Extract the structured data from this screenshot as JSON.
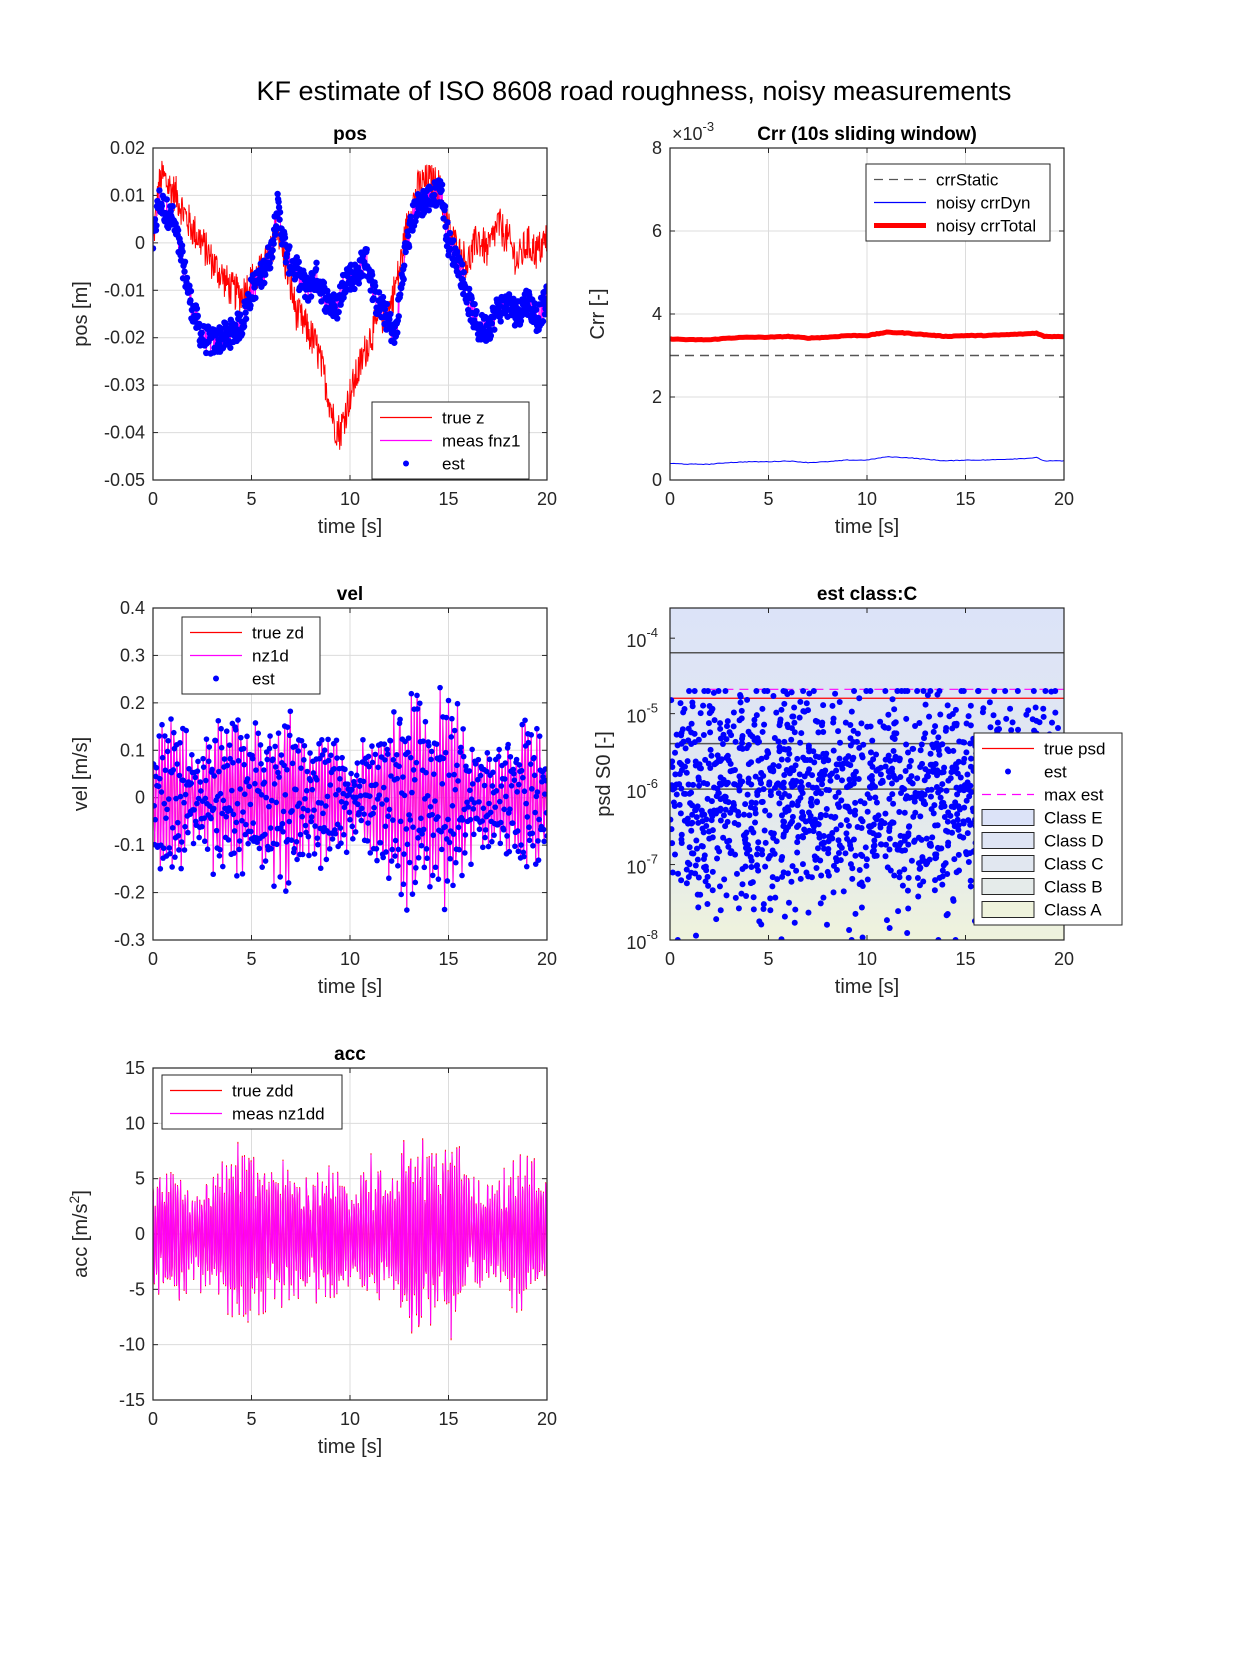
{
  "figure_title": "KF estimate of ISO 8608 road roughness, noisy measurements",
  "chart_data": [
    {
      "id": "pos",
      "type": "line",
      "title": "pos",
      "xlabel": "time [s]",
      "ylabel": "pos [m]",
      "xlim": [
        0,
        20
      ],
      "ylim": [
        -0.05,
        0.02
      ],
      "xticks": [
        "0",
        "5",
        "10",
        "15",
        "20"
      ],
      "yticks": [
        "-0.05",
        "-0.04",
        "-0.03",
        "-0.02",
        "-0.01",
        "0",
        "0.01",
        "0.02"
      ],
      "ytick_values": [
        -0.05,
        -0.04,
        -0.03,
        -0.02,
        -0.01,
        0,
        0.01,
        0.02
      ],
      "grid": true,
      "legend_position": "bottom-right",
      "series": [
        {
          "name": "true z",
          "style": "line",
          "color": "#ff0000",
          "x": [
            0,
            0.3,
            0.5,
            0.8,
            1.2,
            1.6,
            2.0,
            2.5,
            3.0,
            3.5,
            4.0,
            4.5,
            5.0,
            5.5,
            6.0,
            6.3,
            6.8,
            7.3,
            7.8,
            8.3,
            8.8,
            9.2,
            9.5,
            10.0,
            10.5,
            11.0,
            11.5,
            12.0,
            12.5,
            13.0,
            13.5,
            14.0,
            14.5,
            15.0,
            15.5,
            16.0,
            16.5,
            17.0,
            17.5,
            18.0,
            18.5,
            19.0,
            19.5,
            20.0
          ],
          "y": [
            0,
            0.012,
            0.014,
            0.012,
            0.01,
            0.006,
            0.003,
            0.0,
            -0.004,
            -0.007,
            -0.01,
            -0.011,
            -0.008,
            -0.006,
            -0.002,
            0.004,
            -0.006,
            -0.015,
            -0.018,
            -0.022,
            -0.03,
            -0.038,
            -0.04,
            -0.032,
            -0.026,
            -0.02,
            -0.016,
            -0.014,
            -0.006,
            0.006,
            0.012,
            0.013,
            0.012,
            0.003,
            -0.002,
            -0.004,
            0.001,
            -0.002,
            0.004,
            0.001,
            -0.004,
            0.0,
            -0.002,
            0.001
          ]
        },
        {
          "name": "meas fnz1",
          "style": "line",
          "color": "#ff00ff",
          "x": [
            0,
            0.3,
            0.6,
            1.0,
            1.5,
            2.0,
            2.5,
            3.0,
            3.5,
            4.0,
            4.5,
            5.0,
            5.5,
            6.0,
            6.3,
            6.8,
            7.3,
            7.8,
            8.3,
            8.8,
            9.3,
            9.8,
            10.3,
            10.8,
            11.3,
            11.8,
            12.3,
            12.8,
            13.3,
            13.8,
            14.3,
            14.6,
            15.0,
            15.5,
            16.0,
            16.5,
            17.0,
            17.5,
            18.0,
            18.5,
            19.0,
            19.5,
            20.0
          ],
          "y": [
            0,
            0.009,
            0.007,
            0.005,
            -0.004,
            -0.014,
            -0.02,
            -0.021,
            -0.02,
            -0.019,
            -0.017,
            -0.01,
            -0.007,
            -0.002,
            0.008,
            -0.003,
            -0.006,
            -0.01,
            -0.007,
            -0.012,
            -0.014,
            -0.007,
            -0.007,
            -0.003,
            -0.012,
            -0.015,
            -0.02,
            -0.002,
            0.007,
            0.009,
            0.01,
            0.012,
            0.0,
            -0.004,
            -0.012,
            -0.018,
            -0.018,
            -0.014,
            -0.013,
            -0.015,
            -0.012,
            -0.016,
            -0.012
          ]
        },
        {
          "name": "est",
          "style": "dots",
          "color": "#0000ff"
        }
      ]
    },
    {
      "id": "crr",
      "type": "line",
      "title": "Crr (10s sliding window)",
      "exponent_label": "×10",
      "exponent_power": "-3",
      "xlabel": "time [s]",
      "ylabel": "Crr [-]",
      "xlim": [
        0,
        20
      ],
      "ylim": [
        0,
        8
      ],
      "xticks": [
        "0",
        "5",
        "10",
        "15",
        "20"
      ],
      "yticks": [
        "0",
        "2",
        "4",
        "6",
        "8"
      ],
      "ytick_values": [
        0,
        2,
        4,
        6,
        8
      ],
      "grid": true,
      "legend_position": "top-right",
      "series": [
        {
          "name": "crrStatic",
          "style": "dashed",
          "color": "#555555",
          "x": [
            0,
            20
          ],
          "y": [
            3.0,
            3.0
          ]
        },
        {
          "name": "noisy crrDyn",
          "style": "line",
          "color": "#0000ff",
          "x": [
            0,
            1,
            2,
            3,
            4,
            5,
            6,
            7,
            8,
            9,
            10,
            11,
            12,
            13,
            14,
            15,
            16,
            17,
            18,
            18.6,
            19,
            20
          ],
          "y": [
            0.4,
            0.38,
            0.38,
            0.42,
            0.44,
            0.44,
            0.46,
            0.42,
            0.44,
            0.48,
            0.48,
            0.56,
            0.54,
            0.5,
            0.46,
            0.48,
            0.48,
            0.5,
            0.52,
            0.54,
            0.46,
            0.46
          ]
        },
        {
          "name": "noisy crrTotal",
          "style": "thick",
          "color": "#ff0000",
          "x": [
            0,
            1,
            2,
            3,
            4,
            5,
            6,
            7,
            8,
            9,
            10,
            11,
            12,
            13,
            14,
            15,
            16,
            17,
            18,
            18.6,
            19,
            20
          ],
          "y": [
            3.4,
            3.38,
            3.38,
            3.42,
            3.44,
            3.44,
            3.46,
            3.42,
            3.44,
            3.48,
            3.48,
            3.56,
            3.54,
            3.5,
            3.46,
            3.48,
            3.48,
            3.5,
            3.52,
            3.54,
            3.46,
            3.46
          ]
        }
      ]
    },
    {
      "id": "vel",
      "type": "line",
      "title": "vel",
      "xlabel": "time [s]",
      "ylabel": "vel [m/s]",
      "xlim": [
        0,
        20
      ],
      "ylim": [
        -0.3,
        0.4
      ],
      "xticks": [
        "0",
        "5",
        "10",
        "15",
        "20"
      ],
      "yticks": [
        "-0.3",
        "-0.2",
        "-0.1",
        "0",
        "0.1",
        "0.2",
        "0.3",
        "0.4"
      ],
      "ytick_values": [
        -0.3,
        -0.2,
        -0.1,
        0,
        0.1,
        0.2,
        0.3,
        0.4
      ],
      "grid": true,
      "legend_position": "top-left",
      "amplitude_envelope": {
        "x": [
          0,
          1,
          2,
          3,
          4,
          5,
          6,
          7,
          8,
          9,
          10,
          11,
          12,
          13,
          14,
          15,
          16,
          17,
          18,
          19,
          20
        ],
        "y": [
          0.18,
          0.2,
          0.1,
          0.14,
          0.2,
          0.14,
          0.18,
          0.2,
          0.12,
          0.2,
          0.08,
          0.14,
          0.2,
          0.28,
          0.2,
          0.26,
          0.14,
          0.12,
          0.14,
          0.2,
          0.14
        ]
      },
      "series": [
        {
          "name": "true zd",
          "style": "line",
          "color": "#ff0000"
        },
        {
          "name": "nz1d",
          "style": "line",
          "color": "#ff00ff"
        },
        {
          "name": "est",
          "style": "dots",
          "color": "#0000ff"
        }
      ]
    },
    {
      "id": "psd",
      "type": "scatter",
      "title": "est class:C",
      "xlabel": "time [s]",
      "ylabel": "psd S0 [-]",
      "xlim": [
        0,
        20
      ],
      "ylim_log10": [
        -8,
        -3.6
      ],
      "yscale": "log",
      "xticks": [
        "0",
        "5",
        "10",
        "15",
        "20"
      ],
      "yticks": [
        {
          "base": "10",
          "exp": "-8",
          "v": -8
        },
        {
          "base": "10",
          "exp": "-7",
          "v": -7
        },
        {
          "base": "10",
          "exp": "-6",
          "v": -6
        },
        {
          "base": "10",
          "exp": "-5",
          "v": -5
        },
        {
          "base": "10",
          "exp": "-4",
          "v": -4
        }
      ],
      "grid": false,
      "legend_position": "right",
      "class_boundaries": [
        1e-06,
        4e-06,
        6.4e-05
      ],
      "class_fills": {
        "Class E": "#dce3f8",
        "Class D": "#dfe5f4",
        "Class C": "#e1e7f0",
        "Class B": "#e5ebea",
        "Class A": "#eff3dc"
      },
      "series": [
        {
          "name": "true psd",
          "style": "line",
          "color": "#ff0000",
          "y": 1.6e-05
        },
        {
          "name": "est",
          "style": "dots",
          "color": "#0000ff",
          "y_range": [
            1e-08,
            3.2e-05
          ]
        },
        {
          "name": "max est",
          "style": "dashed",
          "color": "#ff00ff",
          "x_start": 2.0,
          "y": 2.1e-05
        },
        {
          "name": "Class E",
          "style": "patch",
          "color": "#dce3f8"
        },
        {
          "name": "Class D",
          "style": "patch",
          "color": "#dfe5f4"
        },
        {
          "name": "Class C",
          "style": "patch",
          "color": "#e1e7f0"
        },
        {
          "name": "Class B",
          "style": "patch",
          "color": "#e5ebea"
        },
        {
          "name": "Class A",
          "style": "patch",
          "color": "#eff3dc"
        }
      ]
    },
    {
      "id": "acc",
      "type": "line",
      "title": "acc",
      "xlabel": "time [s]",
      "ylabel": "acc [m/s",
      "ylabel_sup": "2",
      "ylabel_end": "]",
      "xlim": [
        0,
        20
      ],
      "ylim": [
        -15,
        15
      ],
      "xticks": [
        "0",
        "5",
        "10",
        "15",
        "20"
      ],
      "yticks": [
        "-15",
        "-10",
        "-5",
        "0",
        "5",
        "10",
        "15"
      ],
      "ytick_values": [
        -15,
        -10,
        -5,
        0,
        5,
        10,
        15
      ],
      "grid": true,
      "legend_position": "top-left",
      "amplitude_envelope": {
        "x": [
          0,
          1,
          2,
          3,
          4,
          5,
          6,
          7,
          8,
          9,
          10,
          11,
          12,
          13,
          14,
          15,
          16,
          17,
          18,
          19,
          20
        ],
        "y": [
          6,
          8,
          4,
          7,
          8,
          9,
          6,
          8,
          5,
          8,
          4,
          7,
          5,
          11,
          8,
          10,
          6,
          5,
          6,
          8,
          5
        ]
      },
      "series": [
        {
          "name": "true zdd",
          "style": "line",
          "color": "#ff0000"
        },
        {
          "name": "meas nz1dd",
          "style": "line",
          "color": "#ff00ff"
        }
      ]
    }
  ]
}
